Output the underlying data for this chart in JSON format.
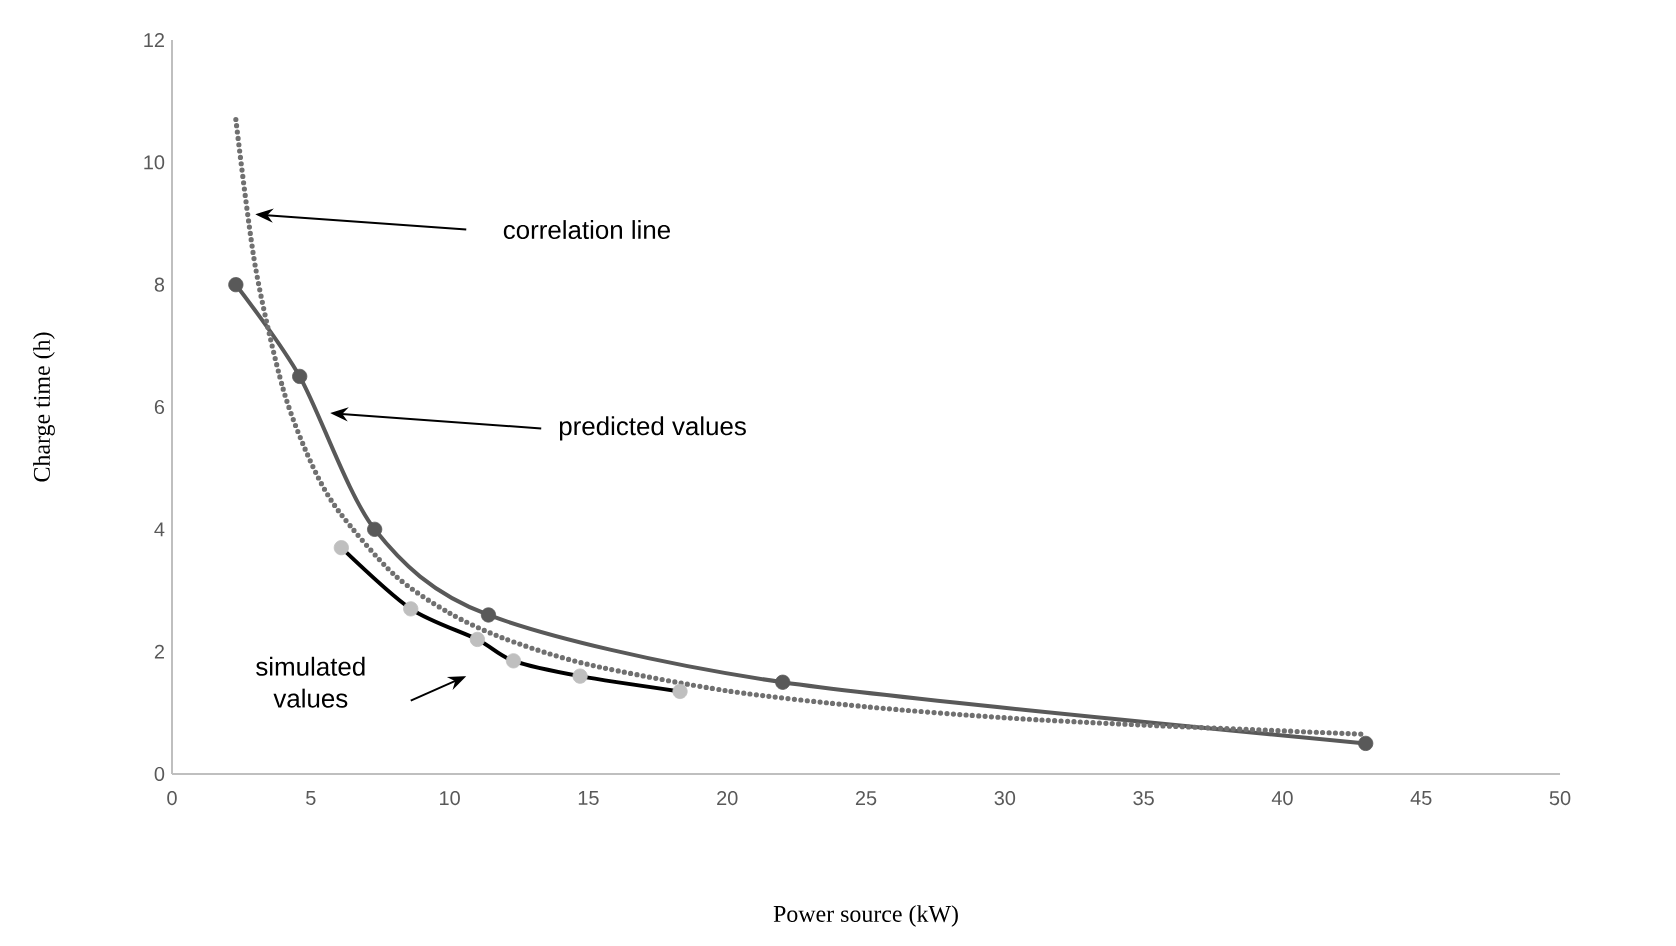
{
  "chart_data": {
    "type": "line",
    "xlabel": "Power source (kW)",
    "ylabel": "Charge time (h)",
    "xlim": [
      0,
      50
    ],
    "xticks": [
      0,
      5,
      10,
      15,
      20,
      25,
      30,
      35,
      40,
      45,
      50
    ],
    "ylim": [
      0,
      12
    ],
    "yticks": [
      0,
      2,
      4,
      6,
      8,
      10,
      12
    ],
    "series": [
      {
        "color": "#595959",
        "marker": "circle",
        "line_style": "solid",
        "x": [
          2.3,
          4.6,
          7.3,
          11.4,
          22,
          43
        ],
        "values": [
          8.0,
          6.5,
          4.0,
          2.6,
          1.5,
          0.5
        ]
      },
      {
        "color": "#000000",
        "colors": [
          "#bfbfbf",
          "#bfbfbf",
          "#bfbfbf",
          "#bfbfbf",
          "#bfbfbf",
          "#bfbfbf"
        ],
        "marker": "circle",
        "line_style": "solid",
        "x": [
          6.1,
          8.6,
          11.0,
          12.3,
          14.7,
          18.3
        ],
        "values": [
          3.7,
          2.7,
          2.2,
          1.85,
          1.6,
          1.35
        ]
      },
      {
        "color": "#707070",
        "marker": "none",
        "line_style": "dotted",
        "x": [
          2.3,
          3,
          4,
          5,
          6,
          8,
          10,
          12,
          15,
          20,
          25,
          30,
          35,
          43
        ],
        "values": [
          10.7,
          8.3,
          6.3,
          5.1,
          4.3,
          3.26,
          2.63,
          2.21,
          1.79,
          1.36,
          1.1,
          0.92,
          0.8,
          0.65
        ]
      }
    ],
    "annotations": [
      "correlation line",
      "predicted values",
      "simulated values"
    ]
  }
}
